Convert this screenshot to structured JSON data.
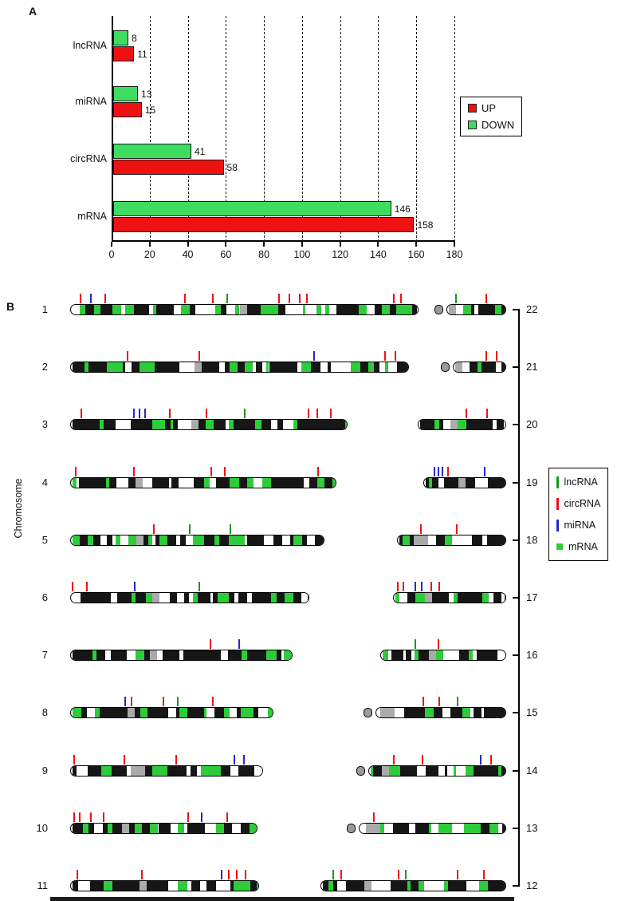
{
  "panel_a": {
    "label": "A",
    "chart_data": {
      "type": "bar",
      "orientation": "horizontal",
      "categories": [
        "lncRNA",
        "miRNA",
        "circRNA",
        "mRNA"
      ],
      "series": [
        {
          "name": "DOWN",
          "color": "#3edd5f",
          "values": [
            8,
            13,
            41,
            146
          ]
        },
        {
          "name": "UP",
          "color": "#ee1111",
          "values": [
            11,
            15,
            58,
            158
          ]
        }
      ],
      "xlim": [
        0,
        180
      ],
      "xticks": [
        0,
        20,
        40,
        60,
        80,
        100,
        120,
        140,
        160,
        180
      ],
      "grid": "dashed-vertical",
      "legend_position": "right",
      "legend": [
        {
          "label": "UP",
          "color": "#ee1111"
        },
        {
          "label": "DOWN",
          "color": "#3edd5f"
        }
      ]
    }
  },
  "panel_b": {
    "label": "B",
    "axis_label": "Chromosome",
    "legend": [
      {
        "label": "lncRNA",
        "color": "#189a18",
        "glyph": "line"
      },
      {
        "label": "circRNA",
        "color": "#ee1111",
        "glyph": "line"
      },
      {
        "label": "miRNA",
        "color": "#2828c8",
        "glyph": "line"
      },
      {
        "label": "mRNA",
        "color": "#2ecb3a",
        "glyph": "square"
      }
    ],
    "mark_colors": {
      "lncRNA": "#189a18",
      "circRNA": "#ee1111",
      "miRNA": "#2828c8"
    },
    "rows": [
      {
        "left": {
          "label": "1",
          "length": 437,
          "satellite": false,
          "cen": 0.5,
          "marks": [
            [
              0.03,
              "circRNA"
            ],
            [
              0.06,
              "miRNA"
            ],
            [
              0.1,
              "circRNA"
            ],
            [
              0.33,
              "circRNA"
            ],
            [
              0.41,
              "circRNA"
            ],
            [
              0.45,
              "lncRNA"
            ],
            [
              0.6,
              "circRNA"
            ],
            [
              0.63,
              "circRNA"
            ],
            [
              0.66,
              "circRNA"
            ],
            [
              0.68,
              "circRNA"
            ],
            [
              0.93,
              "circRNA"
            ],
            [
              0.95,
              "circRNA"
            ]
          ]
        },
        "right": {
          "label": "22",
          "length": 90,
          "satellite": true,
          "cen": 0.1,
          "marks": [
            [
              0.3,
              "lncRNA"
            ],
            [
              0.72,
              "circRNA"
            ]
          ]
        }
      },
      {
        "left": {
          "label": "2",
          "length": 425,
          "satellite": false,
          "cen": 0.38,
          "marks": [
            [
              0.17,
              "circRNA"
            ],
            [
              0.38,
              "circRNA"
            ],
            [
              0.72,
              "miRNA"
            ],
            [
              0.93,
              "circRNA"
            ],
            [
              0.96,
              "circRNA"
            ]
          ]
        },
        "right": {
          "label": "21",
          "length": 82,
          "satellite": true,
          "cen": 0.12,
          "marks": [
            [
              0.7,
              "circRNA"
            ],
            [
              0.85,
              "circRNA"
            ]
          ]
        }
      },
      {
        "left": {
          "label": "3",
          "length": 348,
          "satellite": false,
          "cen": 0.46,
          "marks": [
            [
              0.04,
              "circRNA"
            ],
            [
              0.23,
              "miRNA"
            ],
            [
              0.25,
              "miRNA"
            ],
            [
              0.27,
              "miRNA"
            ],
            [
              0.36,
              "circRNA"
            ],
            [
              0.49,
              "circRNA"
            ],
            [
              0.63,
              "lncRNA"
            ],
            [
              0.86,
              "circRNA"
            ],
            [
              0.89,
              "circRNA"
            ],
            [
              0.94,
              "circRNA"
            ]
          ]
        },
        "right": {
          "label": "20",
          "length": 111,
          "satellite": false,
          "cen": 0.44,
          "marks": [
            [
              0.55,
              "circRNA"
            ],
            [
              0.78,
              "circRNA"
            ]
          ]
        }
      },
      {
        "left": {
          "label": "4",
          "length": 334,
          "satellite": false,
          "cen": 0.26,
          "marks": [
            [
              0.02,
              "circRNA"
            ],
            [
              0.24,
              "circRNA"
            ],
            [
              0.53,
              "circRNA"
            ],
            [
              0.58,
              "circRNA"
            ],
            [
              0.93,
              "circRNA"
            ]
          ]
        },
        "right": {
          "label": "19",
          "length": 104,
          "satellite": false,
          "cen": 0.45,
          "marks": [
            [
              0.13,
              "miRNA"
            ],
            [
              0.18,
              "miRNA"
            ],
            [
              0.23,
              "miRNA"
            ],
            [
              0.3,
              "circRNA"
            ],
            [
              0.74,
              "miRNA"
            ]
          ]
        }
      },
      {
        "left": {
          "label": "5",
          "length": 319,
          "satellite": false,
          "cen": 0.27,
          "marks": [
            [
              0.33,
              "circRNA"
            ],
            [
              0.47,
              "lncRNA"
            ],
            [
              0.63,
              "lncRNA"
            ]
          ]
        },
        "right": {
          "label": "18",
          "length": 137,
          "satellite": false,
          "cen": 0.22,
          "marks": [
            [
              0.22,
              "circRNA"
            ],
            [
              0.55,
              "circRNA"
            ]
          ]
        }
      },
      {
        "left": {
          "label": "6",
          "length": 300,
          "satellite": false,
          "cen": 0.36,
          "marks": [
            [
              0.01,
              "circRNA"
            ],
            [
              0.07,
              "circRNA"
            ],
            [
              0.27,
              "miRNA"
            ],
            [
              0.54,
              "lncRNA"
            ]
          ]
        },
        "right": {
          "label": "17",
          "length": 142,
          "satellite": false,
          "cen": 0.3,
          "marks": [
            [
              0.04,
              "circRNA"
            ],
            [
              0.09,
              "circRNA"
            ],
            [
              0.2,
              "miRNA"
            ],
            [
              0.25,
              "miRNA"
            ],
            [
              0.34,
              "circRNA"
            ],
            [
              0.41,
              "circRNA"
            ]
          ]
        }
      },
      {
        "left": {
          "label": "7",
          "length": 279,
          "satellite": false,
          "cen": 0.38,
          "marks": [
            [
              0.63,
              "circRNA"
            ],
            [
              0.76,
              "miRNA"
            ]
          ]
        },
        "right": {
          "label": "16",
          "length": 158,
          "satellite": false,
          "cen": 0.41,
          "marks": [
            [
              0.28,
              "lncRNA"
            ],
            [
              0.46,
              "circRNA"
            ]
          ]
        }
      },
      {
        "left": {
          "label": "8",
          "length": 255,
          "satellite": false,
          "cen": 0.31,
          "marks": [
            [
              0.27,
              "miRNA"
            ],
            [
              0.3,
              "circRNA"
            ],
            [
              0.46,
              "circRNA"
            ],
            [
              0.53,
              "lncRNA"
            ],
            [
              0.7,
              "circRNA"
            ]
          ]
        },
        "right": {
          "label": "15",
          "length": 179,
          "satellite": true,
          "cen": 0.1,
          "marks": [
            [
              0.42,
              "circRNA"
            ],
            [
              0.53,
              "circRNA"
            ],
            [
              0.66,
              "lncRNA"
            ]
          ]
        }
      },
      {
        "left": {
          "label": "9",
          "length": 242,
          "satellite": false,
          "cen": 0.35,
          "marks": [
            [
              0.02,
              "circRNA"
            ],
            [
              0.28,
              "circRNA"
            ],
            [
              0.55,
              "circRNA"
            ],
            [
              0.85,
              "miRNA"
            ],
            [
              0.9,
              "miRNA"
            ]
          ]
        },
        "right": {
          "label": "14",
          "length": 188,
          "satellite": true,
          "cen": 0.1,
          "marks": [
            [
              0.25,
              "circRNA"
            ],
            [
              0.44,
              "circRNA"
            ],
            [
              0.83,
              "miRNA"
            ],
            [
              0.9,
              "circRNA"
            ]
          ]
        }
      },
      {
        "left": {
          "label": "10",
          "length": 235,
          "satellite": false,
          "cen": 0.3,
          "marks": [
            [
              0.02,
              "circRNA"
            ],
            [
              0.05,
              "circRNA"
            ],
            [
              0.11,
              "circRNA"
            ],
            [
              0.18,
              "circRNA"
            ],
            [
              0.63,
              "circRNA"
            ],
            [
              0.7,
              "miRNA"
            ],
            [
              0.84,
              "circRNA"
            ]
          ]
        },
        "right": {
          "label": "13",
          "length": 200,
          "satellite": true,
          "cen": 0.1,
          "marks": [
            [
              0.17,
              "circRNA"
            ]
          ]
        }
      },
      {
        "left": {
          "label": "11",
          "length": 237,
          "satellite": false,
          "cen": 0.4,
          "marks": [
            [
              0.04,
              "circRNA"
            ],
            [
              0.38,
              "circRNA"
            ],
            [
              0.8,
              "miRNA"
            ],
            [
              0.84,
              "circRNA"
            ],
            [
              0.88,
              "circRNA"
            ],
            [
              0.93,
              "circRNA"
            ]
          ]
        },
        "right": {
          "label": "12",
          "length": 233,
          "satellite": false,
          "cen": 0.27,
          "marks": [
            [
              0.07,
              "lncRNA"
            ],
            [
              0.11,
              "circRNA"
            ],
            [
              0.42,
              "circRNA"
            ],
            [
              0.46,
              "lncRNA"
            ],
            [
              0.74,
              "circRNA"
            ],
            [
              0.88,
              "circRNA"
            ]
          ]
        }
      }
    ]
  }
}
